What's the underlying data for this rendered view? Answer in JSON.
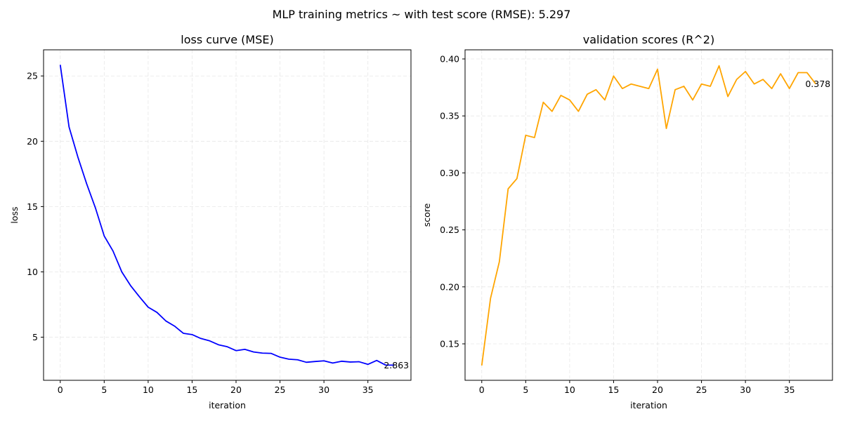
{
  "figure": {
    "suptitle": "MLP training metrics ~ with test score (RMSE): 5.297"
  },
  "chart_data": [
    {
      "type": "line",
      "title": "loss curve (MSE)",
      "xlabel": "iteration",
      "ylabel": "loss",
      "xlim": [
        -1.9,
        39.9
      ],
      "ylim": [
        1.7,
        27.0
      ],
      "xticks": [
        0,
        5,
        10,
        15,
        20,
        25,
        30,
        35
      ],
      "yticks": [
        5,
        10,
        15,
        20,
        25
      ],
      "grid": true,
      "line_color": "#0000ff",
      "x": [
        0,
        1,
        2,
        3,
        4,
        5,
        6,
        7,
        8,
        9,
        10,
        11,
        12,
        13,
        14,
        15,
        16,
        17,
        18,
        19,
        20,
        21,
        22,
        23,
        24,
        25,
        26,
        27,
        28,
        29,
        30,
        31,
        32,
        33,
        34,
        35,
        36,
        37,
        38
      ],
      "y": [
        25.85,
        21.1,
        18.8,
        16.75,
        14.9,
        12.75,
        11.6,
        10.0,
        8.95,
        8.1,
        7.3,
        6.9,
        6.25,
        5.85,
        5.3,
        5.2,
        4.9,
        4.72,
        4.42,
        4.27,
        3.97,
        4.07,
        3.87,
        3.78,
        3.76,
        3.47,
        3.32,
        3.27,
        3.08,
        3.14,
        3.19,
        3.02,
        3.16,
        3.1,
        3.12,
        2.92,
        3.22,
        2.87,
        2.863
      ],
      "annotation": {
        "text": "2.863",
        "x": 38,
        "y": 2.863
      }
    },
    {
      "type": "line",
      "title": "validation scores (R^2)",
      "xlabel": "iteration",
      "ylabel": "score",
      "xlim": [
        -1.9,
        39.9
      ],
      "ylim": [
        0.118,
        0.408
      ],
      "xticks": [
        0,
        5,
        10,
        15,
        20,
        25,
        30,
        35
      ],
      "yticks": [
        0.15,
        0.2,
        0.25,
        0.3,
        0.35,
        0.4
      ],
      "ytick_labels": [
        "0.15",
        "0.20",
        "0.25",
        "0.30",
        "0.35",
        "0.40"
      ],
      "grid": true,
      "line_color": "#ffa500",
      "x": [
        0,
        1,
        2,
        3,
        4,
        5,
        6,
        7,
        8,
        9,
        10,
        11,
        12,
        13,
        14,
        15,
        16,
        17,
        18,
        19,
        20,
        21,
        22,
        23,
        24,
        25,
        26,
        27,
        28,
        29,
        30,
        31,
        32,
        33,
        34,
        35,
        36,
        37,
        38
      ],
      "y": [
        0.131,
        0.19,
        0.222,
        0.286,
        0.295,
        0.333,
        0.331,
        0.362,
        0.354,
        0.368,
        0.364,
        0.354,
        0.369,
        0.373,
        0.364,
        0.385,
        0.374,
        0.378,
        0.376,
        0.374,
        0.391,
        0.339,
        0.373,
        0.376,
        0.364,
        0.378,
        0.376,
        0.394,
        0.367,
        0.382,
        0.389,
        0.378,
        0.382,
        0.374,
        0.387,
        0.374,
        0.388,
        0.388,
        0.378
      ],
      "annotation": {
        "text": "0.378",
        "x": 38,
        "y": 0.378
      }
    }
  ]
}
